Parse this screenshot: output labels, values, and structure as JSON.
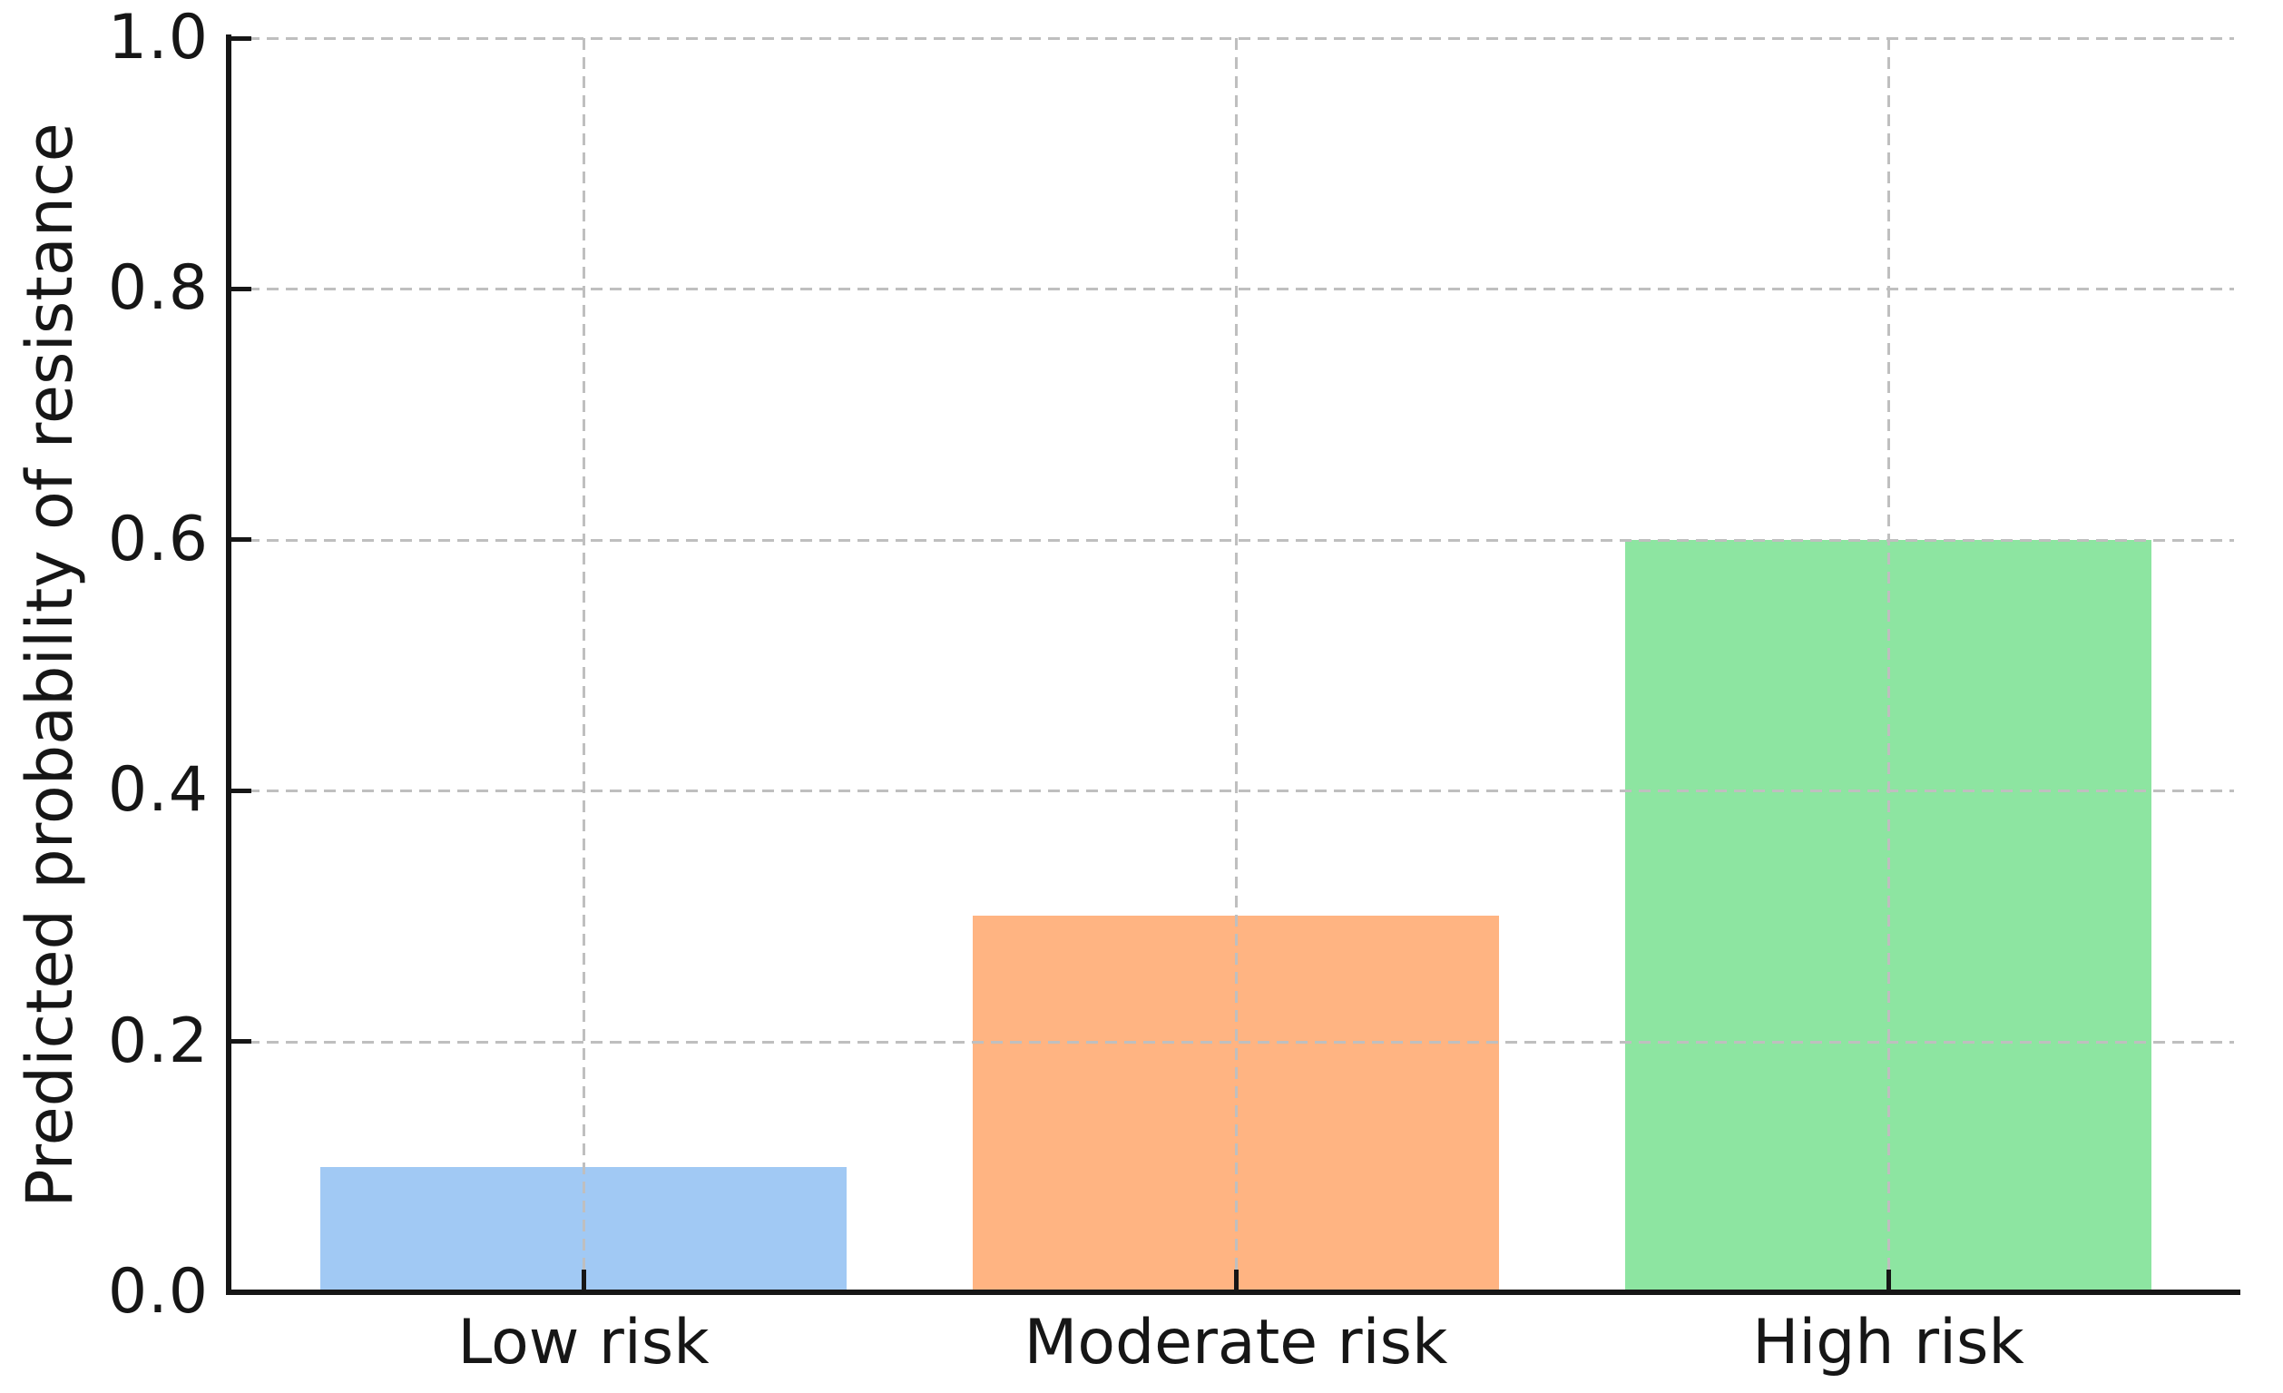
{
  "chart_data": {
    "type": "bar",
    "categories": [
      "Low risk",
      "Moderate risk",
      "High risk"
    ],
    "values": [
      0.1,
      0.3,
      0.6
    ],
    "bar_colors": [
      "#a1c9f4",
      "#ffb482",
      "#8de5a1"
    ],
    "ylabel": "Predicted probability of resistance",
    "yticks": [
      0.0,
      0.2,
      0.4,
      0.6,
      0.8,
      1.0
    ],
    "ytick_labels": [
      "0.0",
      "0.2",
      "0.4",
      "0.6",
      "0.8",
      "1.0"
    ],
    "ylim": [
      0.0,
      1.0
    ],
    "grid": true,
    "grid_style": "dashed",
    "grid_axis": "both",
    "grid_above_bars": true,
    "bar_width_fraction": 0.8,
    "legend": false,
    "grid_color": "#bfbfbf",
    "axis_color": "#161616",
    "text_color": "#161616"
  }
}
